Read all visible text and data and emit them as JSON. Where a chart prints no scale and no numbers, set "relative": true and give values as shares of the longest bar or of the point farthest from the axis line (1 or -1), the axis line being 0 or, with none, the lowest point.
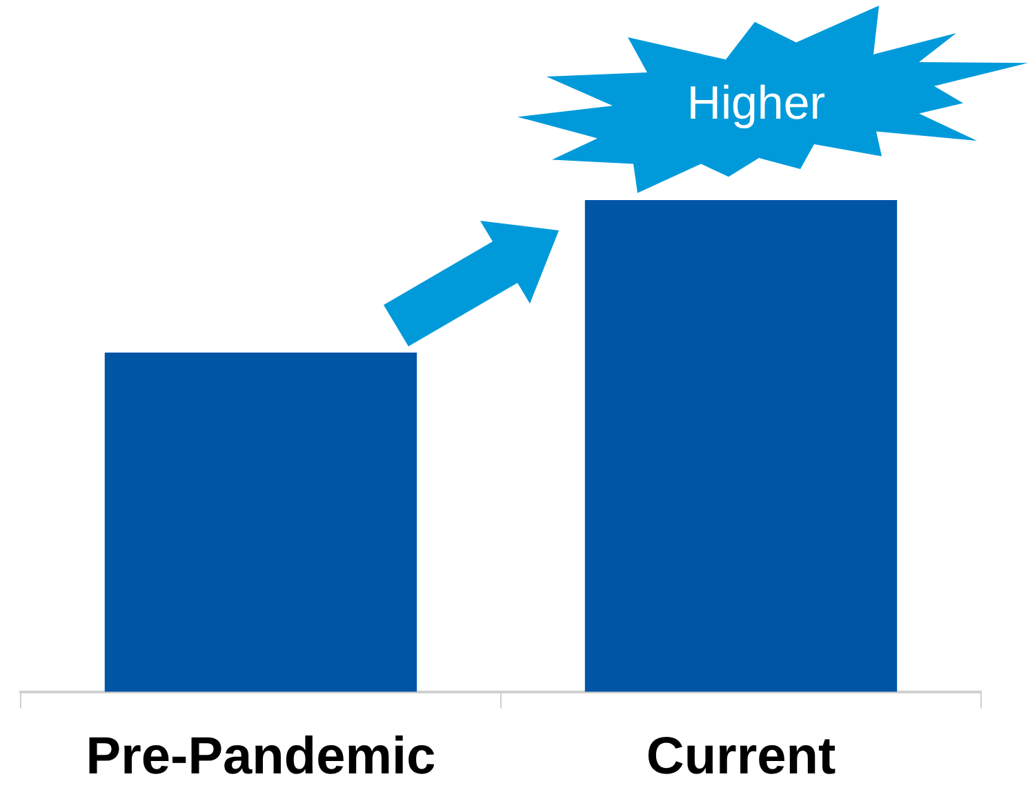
{
  "chart_data": {
    "type": "bar",
    "relative": true,
    "categories": [
      "Pre-Pandemic",
      "Current"
    ],
    "values": [
      0.69,
      1
    ],
    "color": "#0055a5",
    "legend": false,
    "annotations": [
      "Higher"
    ]
  }
}
